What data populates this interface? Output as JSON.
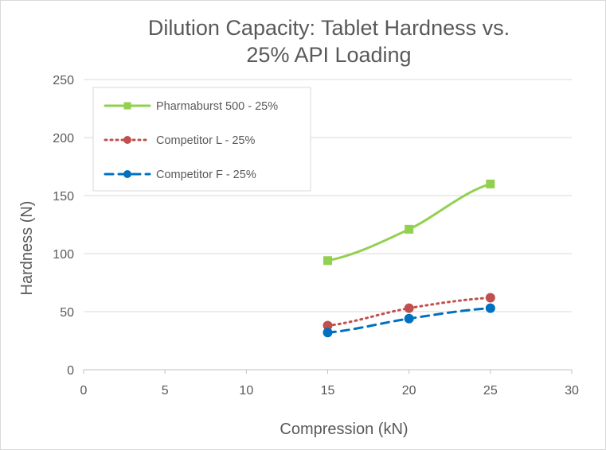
{
  "chart_data": {
    "type": "line",
    "title_lines": [
      "Dilution Capacity: Tablet Hardness vs.",
      "25% API Loading"
    ],
    "xlabel": "Compression (kN)",
    "ylabel": "Hardness (N)",
    "xlim": [
      0,
      30
    ],
    "ylim": [
      0,
      250
    ],
    "x_ticks": [
      "0",
      "5",
      "10",
      "15",
      "20",
      "25",
      "30"
    ],
    "y_ticks": [
      "0",
      "50",
      "100",
      "150",
      "200",
      "250"
    ],
    "grid": "horizontal",
    "legend_position": "top-left",
    "series": [
      {
        "name": "Pharmaburst 500 - 25%",
        "color": "#92d050",
        "line_style": "solid",
        "marker": "square",
        "x": [
          15,
          20,
          25
        ],
        "y": [
          94,
          121,
          160
        ]
      },
      {
        "name": "Competitor L - 25%",
        "color": "#c0504d",
        "line_style": "dotted",
        "marker": "circle",
        "x": [
          15,
          20,
          25
        ],
        "y": [
          38,
          53,
          62
        ]
      },
      {
        "name": "Competitor F - 25%",
        "color": "#0070c0",
        "line_style": "dashed",
        "marker": "circle",
        "x": [
          15,
          20,
          25
        ],
        "y": [
          32,
          44,
          53
        ]
      }
    ]
  }
}
